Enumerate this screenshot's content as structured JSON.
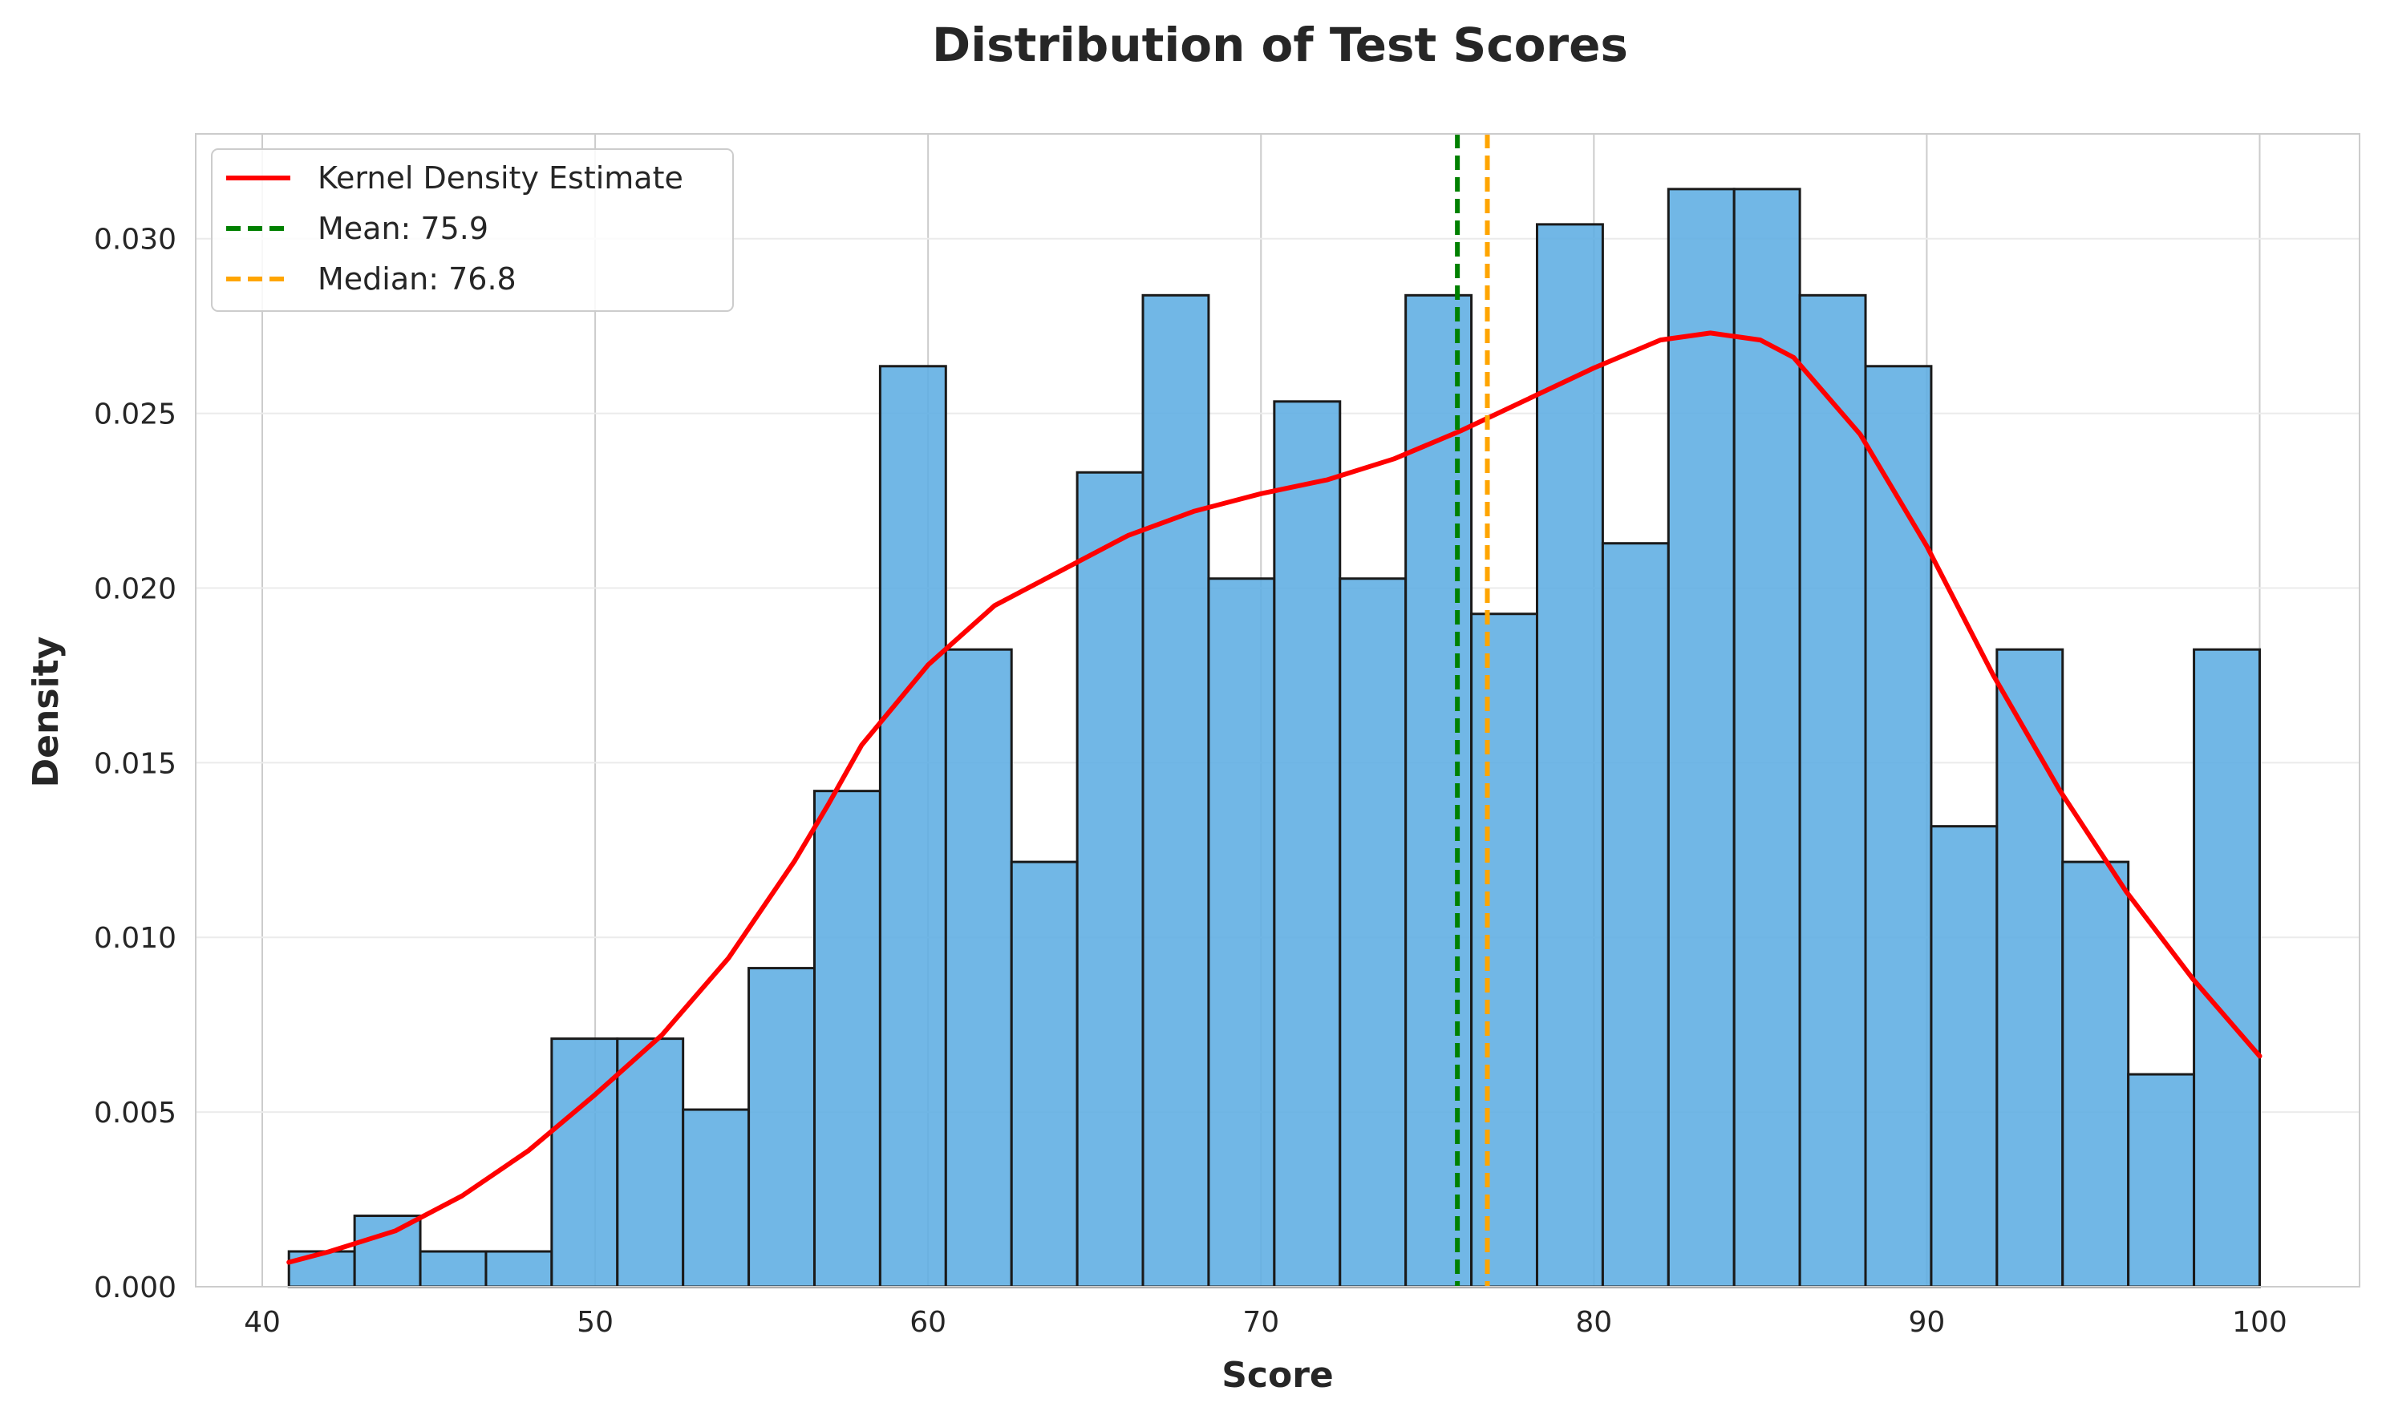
{
  "chart_data": {
    "type": "bar",
    "title": "Distribution of Test Scores",
    "xlabel": "Score",
    "ylabel": "Density",
    "xlim": [
      38,
      103
    ],
    "ylim": [
      0,
      0.033
    ],
    "grid": true,
    "legend_position": "top-left",
    "xticks": [
      40,
      50,
      60,
      70,
      80,
      90,
      100
    ],
    "xtick_labels": [
      "40",
      "50",
      "60",
      "70",
      "80",
      "90",
      "100"
    ],
    "yticks": [
      0.0,
      0.005,
      0.01,
      0.015,
      0.02,
      0.025,
      0.03
    ],
    "ytick_labels": [
      "0.000",
      "0.005",
      "0.010",
      "0.015",
      "0.020",
      "0.025",
      "0.030"
    ],
    "histogram": {
      "bin_start": 40.8,
      "bin_end": 100.0,
      "densities": [
        0.00101,
        0.00203,
        0.00101,
        0.00101,
        0.0071,
        0.0071,
        0.00507,
        0.00912,
        0.01419,
        0.02635,
        0.01824,
        0.01216,
        0.02331,
        0.02838,
        0.02027,
        0.02534,
        0.02027,
        0.02838,
        0.01926,
        0.03041,
        0.02128,
        0.03142,
        0.03142,
        0.02838,
        0.02635,
        0.01318,
        0.01824,
        0.01216,
        0.00608,
        0.01824
      ],
      "color": "#5DADE2",
      "edge_color": "#1a1a1a"
    },
    "series": [
      {
        "name": "Kernel Density Estimate",
        "type": "line",
        "color": "#FF0000",
        "x": [
          40.8,
          42,
          44,
          46,
          48,
          50,
          52,
          54,
          56,
          57,
          58,
          60,
          62,
          64,
          66,
          68,
          70,
          72,
          74,
          76,
          78,
          80,
          82,
          83.5,
          85,
          86,
          88,
          90,
          92,
          94,
          96,
          98,
          100
        ],
        "y": [
          0.0007,
          0.001,
          0.0016,
          0.0026,
          0.0039,
          0.0055,
          0.0072,
          0.0094,
          0.0122,
          0.0138,
          0.0155,
          0.0178,
          0.0195,
          0.0205,
          0.0215,
          0.0222,
          0.0227,
          0.0231,
          0.0237,
          0.0245,
          0.0254,
          0.0263,
          0.0271,
          0.0273,
          0.0271,
          0.0266,
          0.0244,
          0.0212,
          0.0175,
          0.0142,
          0.0113,
          0.0088,
          0.0066
        ]
      },
      {
        "name": "Mean: 75.9",
        "type": "vline",
        "x": 75.9,
        "color": "#008000"
      },
      {
        "name": "Median: 76.8",
        "type": "vline",
        "x": 76.8,
        "color": "#FFA500"
      }
    ]
  }
}
